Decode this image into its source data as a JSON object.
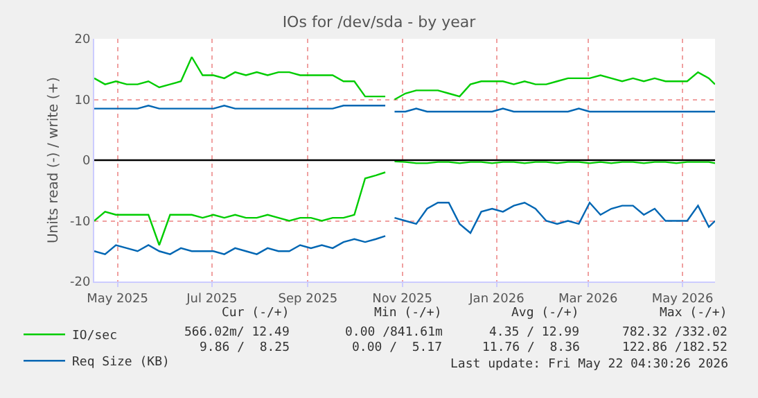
{
  "chart_data": {
    "type": "line",
    "title": "IOs for /dev/sda - by year",
    "ylabel": "Units read (-) / write (+)",
    "x": [
      "2025-04-16",
      "2025-04-23",
      "2025-04-30",
      "2025-05-07",
      "2025-05-14",
      "2025-05-21",
      "2025-05-28",
      "2025-06-04",
      "2025-06-11",
      "2025-06-18",
      "2025-06-25",
      "2025-07-02",
      "2025-07-09",
      "2025-07-16",
      "2025-07-23",
      "2025-07-30",
      "2025-08-06",
      "2025-08-13",
      "2025-08-20",
      "2025-08-27",
      "2025-09-03",
      "2025-09-10",
      "2025-09-17",
      "2025-09-24",
      "2025-10-01",
      "2025-10-08",
      "2025-10-15",
      "2025-10-21",
      "2025-10-24",
      "2025-10-27",
      "2025-11-03",
      "2025-11-10",
      "2025-11-17",
      "2025-11-24",
      "2025-12-01",
      "2025-12-08",
      "2025-12-15",
      "2025-12-22",
      "2025-12-29",
      "2026-01-05",
      "2026-01-12",
      "2026-01-19",
      "2026-01-26",
      "2026-02-02",
      "2026-02-09",
      "2026-02-16",
      "2026-02-23",
      "2026-03-02",
      "2026-03-09",
      "2026-03-16",
      "2026-03-23",
      "2026-03-30",
      "2026-04-06",
      "2026-04-13",
      "2026-04-20",
      "2026-04-27",
      "2026-05-04",
      "2026-05-11",
      "2026-05-18",
      "2026-05-22"
    ],
    "series": [
      {
        "name": "IO/sec",
        "color": "#00cc00",
        "values": [
          13.5,
          12.5,
          13,
          12.5,
          12.5,
          13,
          12,
          12.5,
          13,
          17,
          14,
          14,
          13.5,
          14.5,
          14,
          14.5,
          14,
          14.5,
          14.5,
          14,
          14,
          14,
          14,
          13,
          13,
          10.5,
          10.5,
          10.5,
          null,
          10,
          11,
          11.5,
          11.5,
          11.5,
          11,
          10.5,
          12.5,
          13,
          13,
          13,
          12.5,
          13,
          12.5,
          12.5,
          13,
          13.5,
          13.5,
          13.5,
          14,
          13.5,
          13,
          13.5,
          13,
          13.5,
          13,
          13,
          13,
          14.5,
          13.5,
          12.5
        ]
      },
      {
        "color": "#00cc00",
        "values": [
          -10,
          -8.5,
          -9,
          -9,
          -9,
          -9,
          -14,
          -9,
          -9,
          -9,
          -9.5,
          -9,
          -9.5,
          -9,
          -9.5,
          -9.5,
          -9,
          -9.5,
          -10,
          -9.5,
          -9.5,
          -10,
          -9.5,
          -9.5,
          -9,
          -3,
          -2.5,
          -2,
          null,
          -0.2,
          -0.3,
          -0.5,
          -0.5,
          -0.3,
          -0.3,
          -0.5,
          -0.3,
          -0.3,
          -0.5,
          -0.3,
          -0.3,
          -0.5,
          -0.3,
          -0.3,
          -0.5,
          -0.3,
          -0.3,
          -0.5,
          -0.3,
          -0.5,
          -0.3,
          -0.3,
          -0.5,
          -0.3,
          -0.3,
          -0.5,
          -0.3,
          -0.3,
          -0.3,
          -0.5
        ]
      },
      {
        "name": "Req Size (KB)",
        "color": "#0066b3",
        "values": [
          8.5,
          8.5,
          8.5,
          8.5,
          8.5,
          9,
          8.5,
          8.5,
          8.5,
          8.5,
          8.5,
          8.5,
          9,
          8.5,
          8.5,
          8.5,
          8.5,
          8.5,
          8.5,
          8.5,
          8.5,
          8.5,
          8.5,
          9,
          9,
          9,
          9,
          9,
          null,
          8,
          8,
          8.5,
          8,
          8,
          8,
          8,
          8,
          8,
          8,
          8.5,
          8,
          8,
          8,
          8,
          8,
          8,
          8.5,
          8,
          8,
          8,
          8,
          8,
          8,
          8,
          8,
          8,
          8,
          8,
          8,
          8
        ]
      },
      {
        "color": "#0066b3",
        "values": [
          -15,
          -15.5,
          -14,
          -14.5,
          -15,
          -14,
          -15,
          -15.5,
          -14.5,
          -15,
          -15,
          -15,
          -15.5,
          -14.5,
          -15,
          -15.5,
          -14.5,
          -15,
          -15,
          -14,
          -14.5,
          -14,
          -14.5,
          -13.5,
          -13,
          -13.5,
          -13,
          -12.5,
          null,
          -9.5,
          -10,
          -10.5,
          -8,
          -7,
          -7,
          -10.5,
          -12,
          -8.5,
          -8,
          -8.5,
          -7.5,
          -7,
          -8,
          -10,
          -10.5,
          -10,
          -10.5,
          -7,
          -9,
          -8,
          -7.5,
          -7.5,
          -9,
          -8,
          -10,
          -10,
          -10,
          -7.5,
          -11,
          -10
        ]
      }
    ],
    "xlim": [
      "2025-04-16",
      "2026-05-22"
    ],
    "xticks": [
      {
        "value": "2025-05-01",
        "label": "May 2025"
      },
      {
        "value": "2025-07-01",
        "label": "Jul 2025"
      },
      {
        "value": "2025-09-01",
        "label": "Sep 2025"
      },
      {
        "value": "2025-11-01",
        "label": "Nov 2025"
      },
      {
        "value": "2026-01-01",
        "label": "Jan 2026"
      },
      {
        "value": "2026-03-01",
        "label": "Mar 2026"
      },
      {
        "value": "2026-05-01",
        "label": "May 2026"
      }
    ],
    "ylim": [
      -20,
      20
    ],
    "yticks": [
      -20,
      -10,
      0,
      10,
      20
    ],
    "ref_lines": [
      {
        "axis": "y",
        "value": 0,
        "color": "#000000"
      }
    ],
    "grid": true,
    "legend": "bottom",
    "marker": "none",
    "line_style": "solid",
    "annotations": [
      "Cur (-/+)",
      "Min (-/+)",
      "Avg (-/+)",
      "Max (-/+)",
      "566.02m/ 12.49",
      "0.00 /841.61m",
      "4.35 / 12.99",
      "782.32 /332.02",
      "9.86 /  8.25",
      "0.00 /  5.17",
      "11.76 /  8.36",
      "122.86 /182.52",
      "Last update: Fri May 22 04:30:26 2026"
    ]
  }
}
